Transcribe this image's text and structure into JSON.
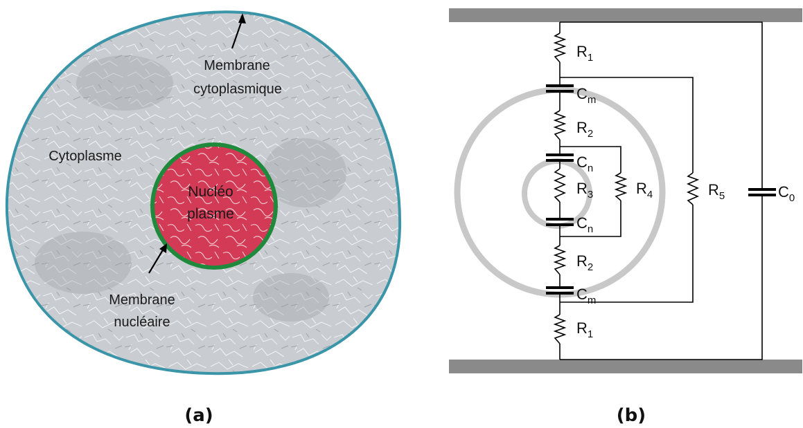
{
  "panel_a": {
    "caption": "(a)",
    "membrane_cyto_line1": "Membrane",
    "membrane_cyto_line2": "cytoplasmique",
    "cytoplasm": "Cytoplasme",
    "nucleus_line1": "Nucléo",
    "nucleus_line2": "plasme",
    "membrane_nuc_line1": "Membrane",
    "membrane_nuc_line2": "nucléaire",
    "colors": {
      "cell_outline": "#3b95a8",
      "cytoplasm": "#c4c7cc",
      "nucleus_fill": "#d33a55",
      "nucleus_outline": "#1f8a3c"
    }
  },
  "panel_b": {
    "caption": "(b)",
    "components": [
      {
        "id": "R1_top",
        "base": "R",
        "sub": "1"
      },
      {
        "id": "Cm_top",
        "base": "C",
        "sub": "m"
      },
      {
        "id": "R2_top",
        "base": "R",
        "sub": "2"
      },
      {
        "id": "Cn_top",
        "base": "C",
        "sub": "n"
      },
      {
        "id": "R3",
        "base": "R",
        "sub": "3"
      },
      {
        "id": "R4",
        "base": "R",
        "sub": "4"
      },
      {
        "id": "Cn_bot",
        "base": "C",
        "sub": "n"
      },
      {
        "id": "R2_bot",
        "base": "R",
        "sub": "2"
      },
      {
        "id": "Cm_bot",
        "base": "C",
        "sub": "m"
      },
      {
        "id": "R1_bot",
        "base": "R",
        "sub": "1"
      },
      {
        "id": "R5",
        "base": "R",
        "sub": "5"
      },
      {
        "id": "C0",
        "base": "C",
        "sub": "0"
      }
    ],
    "colors": {
      "electrode": "#8a8a8a",
      "rings": "#c8c8c8"
    }
  }
}
